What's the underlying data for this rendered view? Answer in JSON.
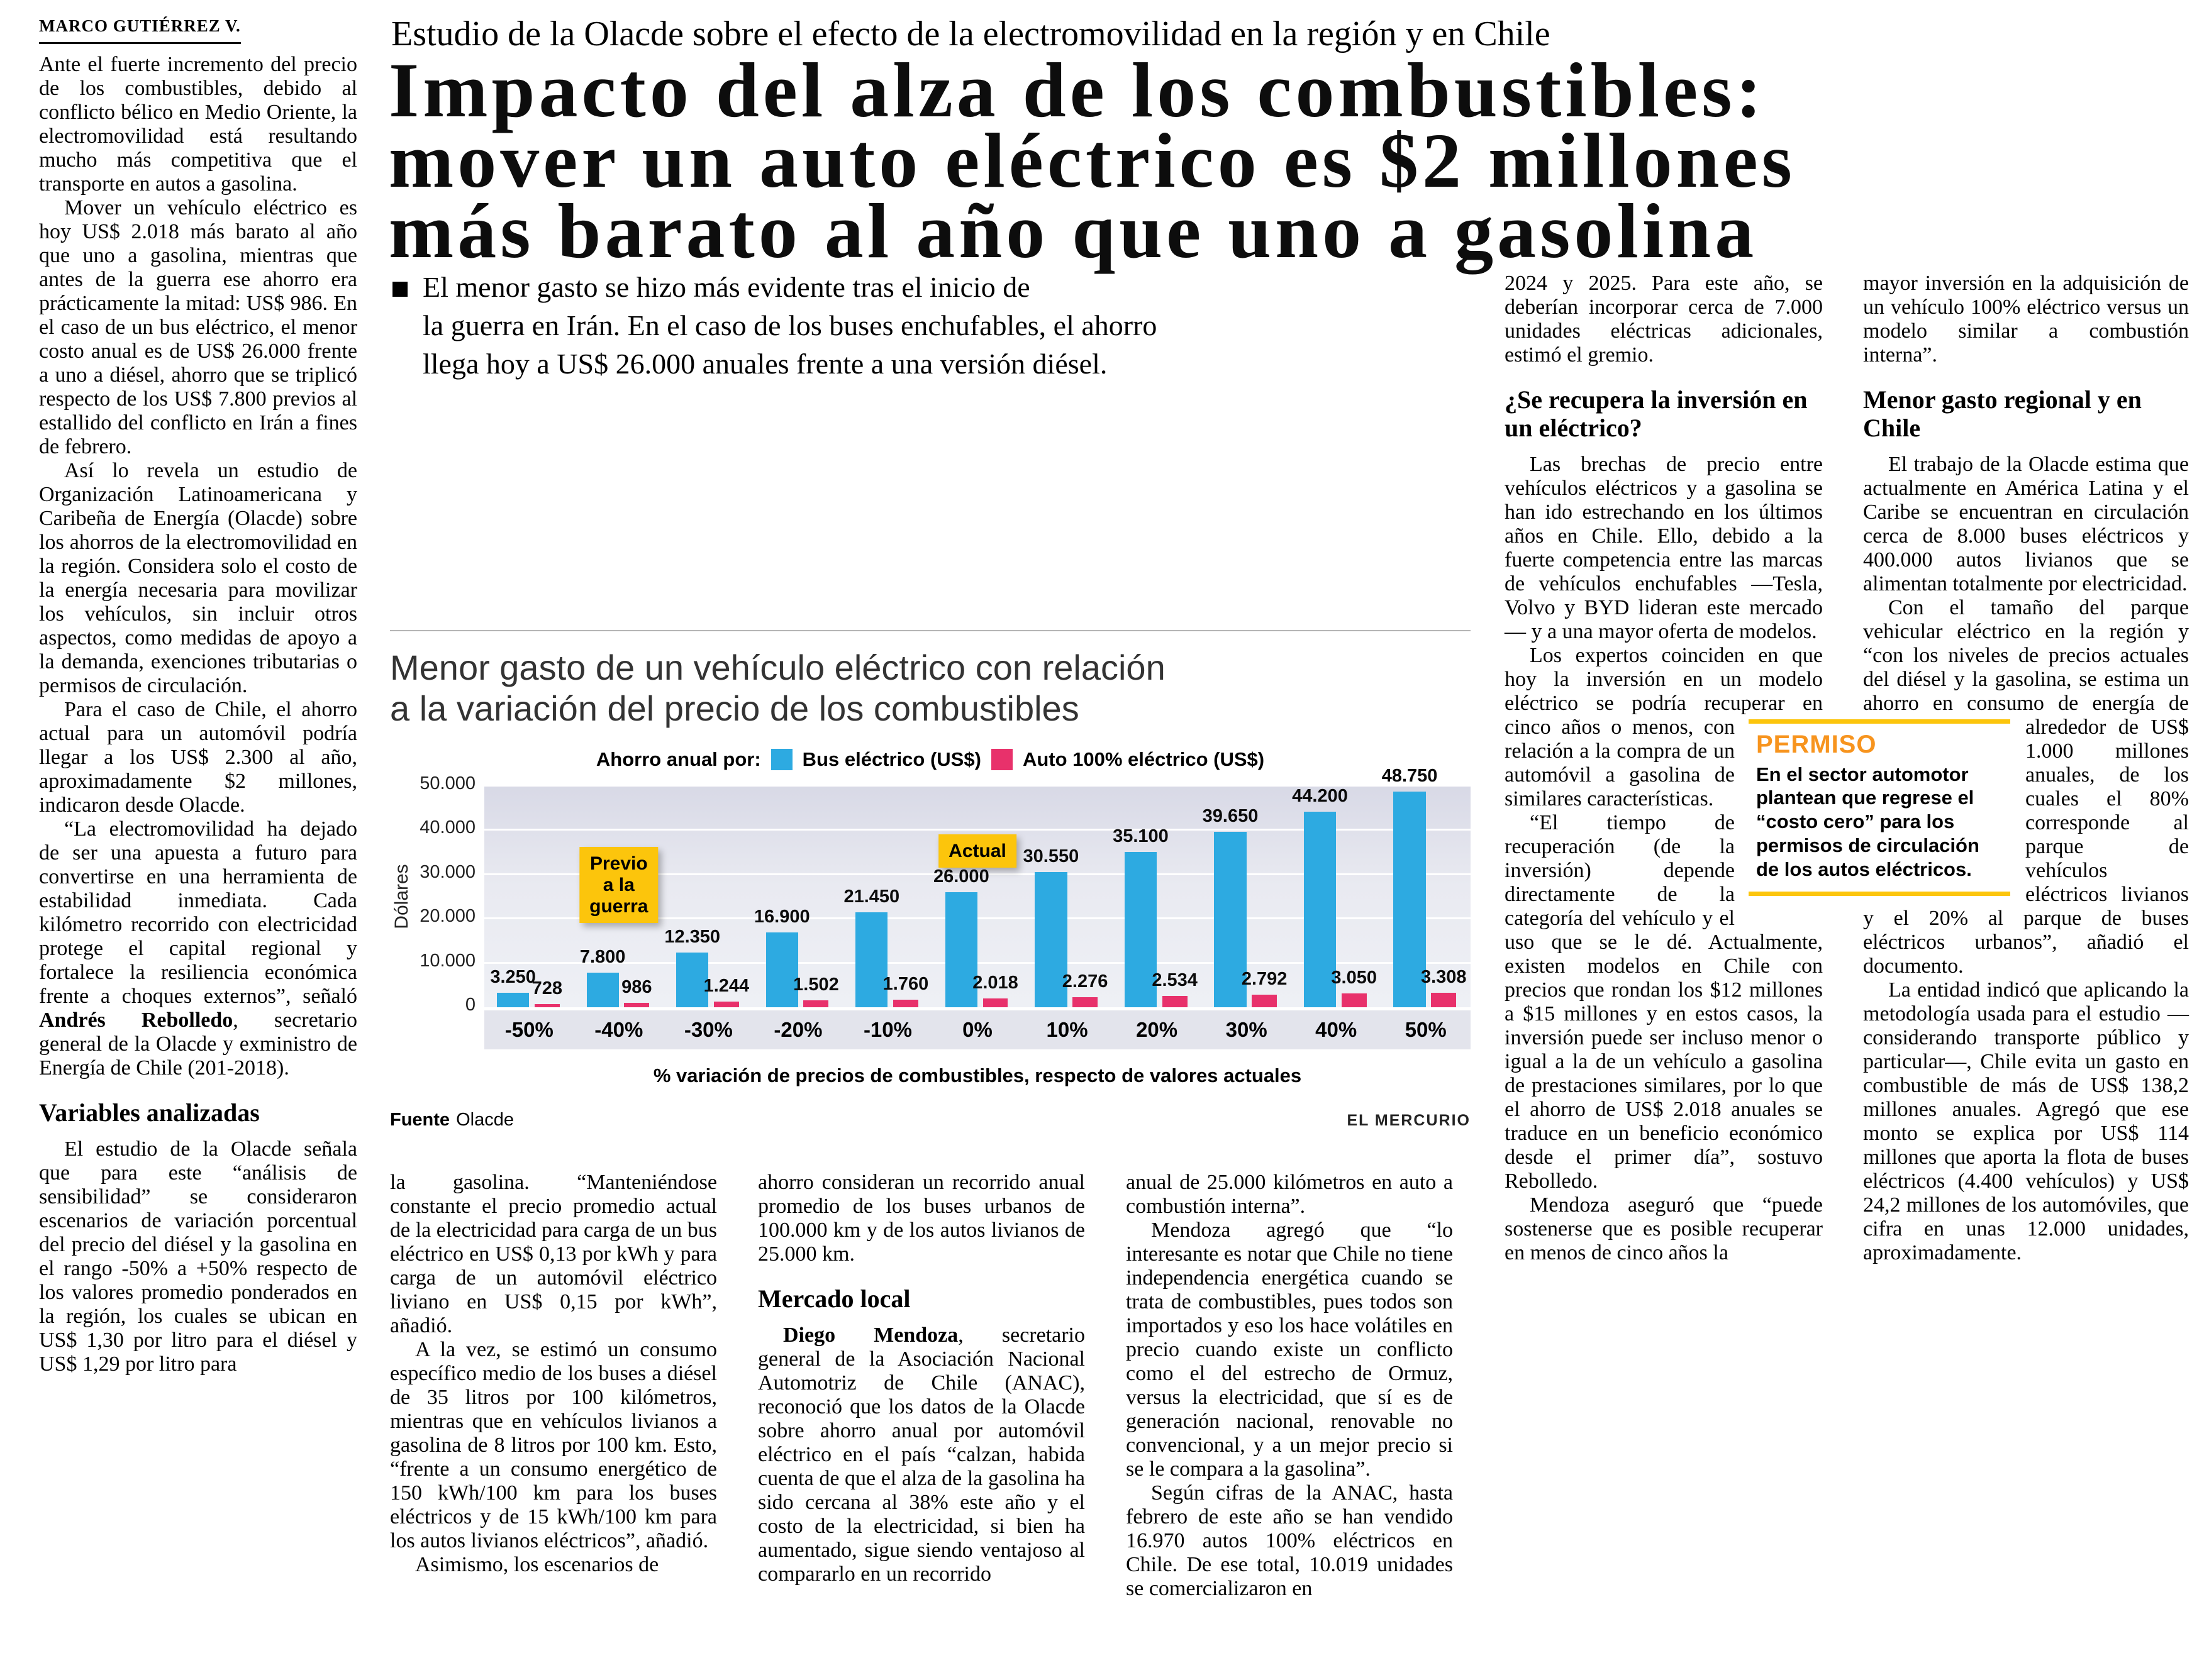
{
  "article": {
    "byline": "MARCO GUTIÉRREZ V.",
    "kicker": "Estudio de la Olacde sobre el efecto de la electromovilidad en la región y en Chile",
    "headline": "Impacto del alza de los combustibles:\nmover un auto eléctrico es $2 millones\nmás barato al año que uno a gasolina",
    "lede": "El menor gasto se hizo más evidente tras el inicio de\nla guerra en Irán. En el caso de los buses enchufables, el ahorro\nllega hoy a US$ 26.000 anuales frente a una versión diésel."
  },
  "columns": {
    "col1": [
      {
        "type": "p",
        "noindent": true,
        "text": "Ante el fuerte incremento del precio de los combustibles, debido al conflicto bélico en Medio Oriente, la electromovilidad está resultando mucho más competitiva que el transporte en autos a gasolina."
      },
      {
        "type": "p",
        "text": "Mover un vehículo eléctrico es hoy US$ 2.018 más barato al año que uno a gasolina, mientras que antes de la guerra ese ahorro era prácticamente la mitad: US$ 986. En el caso de un bus eléctrico, el menor costo anual es de US$ 26.000 frente a uno a diésel, ahorro que se triplicó respecto de los US$ 7.800 previos al estallido del conflicto en Irán a fines de febrero."
      },
      {
        "type": "p",
        "text": "Así lo revela un estudio de Organización Latinoamericana y Caribeña de Energía (Olacde) sobre los ahorros de la electromovilidad en la región. Considera solo el costo de la energía necesaria para movilizar los vehículos, sin incluir otros aspectos, como medidas de apoyo a la demanda, exenciones tributarias o permisos de circulación."
      },
      {
        "type": "p",
        "text": "Para el caso de Chile, el ahorro actual para un automóvil podría llegar a los US$ 2.300 al año, aproximadamente $2 millones, indicaron desde Olacde."
      },
      {
        "type": "p",
        "text": "“La electromovilidad ha dejado de ser una apuesta a futuro para convertirse en una herramienta de estabilidad inmediata. Cada kilómetro recorrido con electricidad protege el capital regional y fortalece la resiliencia económica frente a choques externos”, señaló **Andrés Rebolledo**, secretario general de la Olacde y exministro de Energía de Chile (201-2018)."
      },
      {
        "type": "h",
        "text": "Variables analizadas"
      },
      {
        "type": "p",
        "text": "El estudio de la Olacde señala que para este “análisis de sensibilidad” se consideraron escenarios de variación porcentual del precio del diésel y la gasolina en el rango -50% a +50% respecto de los valores promedio ponderados en la región, los cuales se ubican en US$ 1,30 por litro para el diésel y US$ 1,29 por litro para"
      }
    ],
    "col2": [
      {
        "type": "p",
        "noindent": true,
        "text": "la gasolina. “Manteniéndose constante el precio promedio actual de la electricidad para carga de un bus eléctrico en US$ 0,13 por kWh y para carga de un automóvil eléctrico liviano en US$ 0,15 por kWh”, añadió."
      },
      {
        "type": "p",
        "text": "A la vez, se estimó un consumo específico medio de los buses a diésel de 35 litros por 100 kilómetros, mientras que en vehículos livianos a gasolina de 8 litros por 100 km. Esto, “frente a un consumo energético de 150 kWh/100 km para los buses eléctricos y de 15 kWh/100 km para los autos livianos eléctricos”, añadió."
      },
      {
        "type": "p",
        "text": "Asimismo, los escenarios de"
      }
    ],
    "col3": [
      {
        "type": "p",
        "noindent": true,
        "text": "ahorro consideran un recorrido anual promedio de los buses urbanos de 100.000 km y de los autos livianos de 25.000 km."
      },
      {
        "type": "h",
        "text": "Mercado local"
      },
      {
        "type": "p",
        "text": "**Diego Mendoza**, secretario general de la Asociación Nacional Automotriz de Chile (ANAC), reconoció que los datos de la Olacde sobre ahorro anual por automóvil eléctrico en el país “calzan, habida cuenta de que el alza de la gasolina ha sido cercana al 38% este año y el costo de la electricidad, si bien ha aumentado, sigue siendo ventajoso al compararlo en un recorrido"
      }
    ],
    "col4": [
      {
        "type": "p",
        "noindent": true,
        "text": "anual de 25.000 kilómetros en auto a combustión interna”."
      },
      {
        "type": "p",
        "text": "Mendoza agregó que “lo interesante es notar que Chile no tiene independencia energética cuando se trata de combustibles, pues todos son importados y eso los hace volátiles en precio cuando existe un conflicto como el del estrecho de Ormuz, versus la electricidad, que sí es de generación nacional, renovable no convencional, y a un mejor precio si se le compara a la gasolina”."
      },
      {
        "type": "p",
        "text": "Según cifras de la ANAC, hasta febrero de este año se han vendido 16.970 autos 100% eléctricos en Chile. De ese total, 10.019 unidades se comercializaron en"
      }
    ],
    "col5": [
      {
        "type": "p",
        "noindent": true,
        "text": "2024 y 2025. Para este año, se deberían incorporar cerca de 7.000 unidades eléctricas adicionales, estimó el gremio."
      },
      {
        "type": "h",
        "text": "¿Se recupera la inversión en un eléctrico?"
      },
      {
        "type": "p",
        "text": "Las brechas de precio entre vehículos eléctricos y a gasolina se han ido estrechando en los últimos años en Chile. Ello, debido a la fuerte competencia entre las marcas de vehículos enchufables —Tesla, Volvo y BYD lideran este mercado— y a una mayor oferta de modelos."
      },
      {
        "type": "p",
        "text": "Los expertos coinciden en que hoy la inversión en un modelo eléctrico se podría recuperar en {{SPACER_R}}cinco años o menos, con relación a la compra de un automóvil a gasolina de similares características."
      },
      {
        "type": "p",
        "text": "“El tiempo de recuperación (de la inversión) depende directamente de la categoría del vehículo y el uso que se le dé. Actualmente, existen modelos en Chile con precios que rondan los $12 millones a $15 millones y en estos casos, la inversión puede ser incluso menor o igual a la de un vehículo a gasolina de prestaciones similares, por lo que el ahorro de US$ 2.018 anuales se traduce en un beneficio económico desde el primer día”, sostuvo Rebolledo."
      },
      {
        "type": "p",
        "text": "Mendoza aseguró que “puede sostenerse que es posible recuperar en menos de cinco años la"
      }
    ],
    "col6": [
      {
        "type": "p",
        "noindent": true,
        "text": "mayor inversión en la adquisición de un vehículo 100% eléctrico versus un modelo similar a combustión interna”."
      },
      {
        "type": "h",
        "text": "Menor gasto regional y en Chile"
      },
      {
        "type": "p",
        "text": "El trabajo de la Olacde estima que actualmente en América Latina y el Caribe se encuentran en circulación cerca de 8.000 buses eléctricos y 400.000 autos livianos que se alimentan totalmente por electricidad."
      },
      {
        "type": "p",
        "text": "Con el tamaño del parque vehicular eléctrico en la región y “con los niveles de precios actuales del diésel y la gasolina, se estima un ahorro en consumo {{PERMISO}}de energía de alrededor de US$ 1.000 millones anuales, de los cuales el 80% corresponde al parque de vehículos eléctricos livianos y el 20% al parque de buses eléctricos urbanos”, añadió el documento."
      },
      {
        "type": "p",
        "text": "La entidad indicó que aplicando la metodología usada para el estudio —considerando transporte público y particular—, Chile evita un gasto en combustible de más de US$ 138,2 millones anuales. Agregó que ese monto se explica por US$ 114 millones que aporta la flota de buses eléctricos (4.400 vehículos) y US$ 24,2 millones de los automóviles, que cifra en unas 12.000 unidades, aproximadamente."
      }
    ]
  },
  "permiso_box": {
    "title": "PERMISO",
    "text": "En el sector automotor plantean que regrese el “costo cero” para los permisos de circulación de los autos eléctricos."
  },
  "chart_data": {
    "type": "bar",
    "title": "Menor gasto de un vehículo eléctrico con relación\na la variación del precio de los combustibles",
    "legend_label": "Ahorro anual por:",
    "categories": [
      "-50%",
      "-40%",
      "-30%",
      "-20%",
      "-10%",
      "0%",
      "10%",
      "20%",
      "30%",
      "40%",
      "50%"
    ],
    "series": [
      {
        "name": "Bus eléctrico (US$)",
        "color": "#2daae1",
        "values": [
          3250,
          7800,
          12350,
          16900,
          21450,
          26000,
          30550,
          35100,
          39650,
          44200,
          48750
        ],
        "labels": [
          "3.250",
          "7.800",
          "12.350",
          "16.900",
          "21.450",
          "26.000",
          "30.550",
          "35.100",
          "39.650",
          "44.200",
          "48.750"
        ]
      },
      {
        "name": "Auto 100% eléctrico (US$)",
        "color": "#e8316b",
        "values": [
          728,
          986,
          1244,
          1502,
          1760,
          2018,
          2276,
          2534,
          2792,
          3050,
          3308
        ],
        "labels": [
          "728",
          "986",
          "1.244",
          "1.502",
          "1.760",
          "2.018",
          "2.276",
          "2.534",
          "2.792",
          "3.050",
          "3.308"
        ]
      }
    ],
    "ylabel": "Dólares",
    "xlabel": "% variación de precios de combustibles, respecto de valores actuales",
    "yticks": [
      "50.000",
      "40.000",
      "30.000",
      "20.000",
      "10.000",
      "0"
    ],
    "ylim": [
      0,
      50000
    ],
    "grid": true,
    "legend_position": "top",
    "annotations": [
      {
        "text": "Previo\na la\nguerra",
        "category_index": 1,
        "bottom_pct": 38,
        "color": "#fcc50c"
      },
      {
        "text": "Actual",
        "category_index": 5,
        "bottom_pct": 63,
        "color": "#fcc50c"
      }
    ],
    "source_label": "Fuente",
    "source": "Olacde",
    "credit": "EL MERCURIO"
  }
}
